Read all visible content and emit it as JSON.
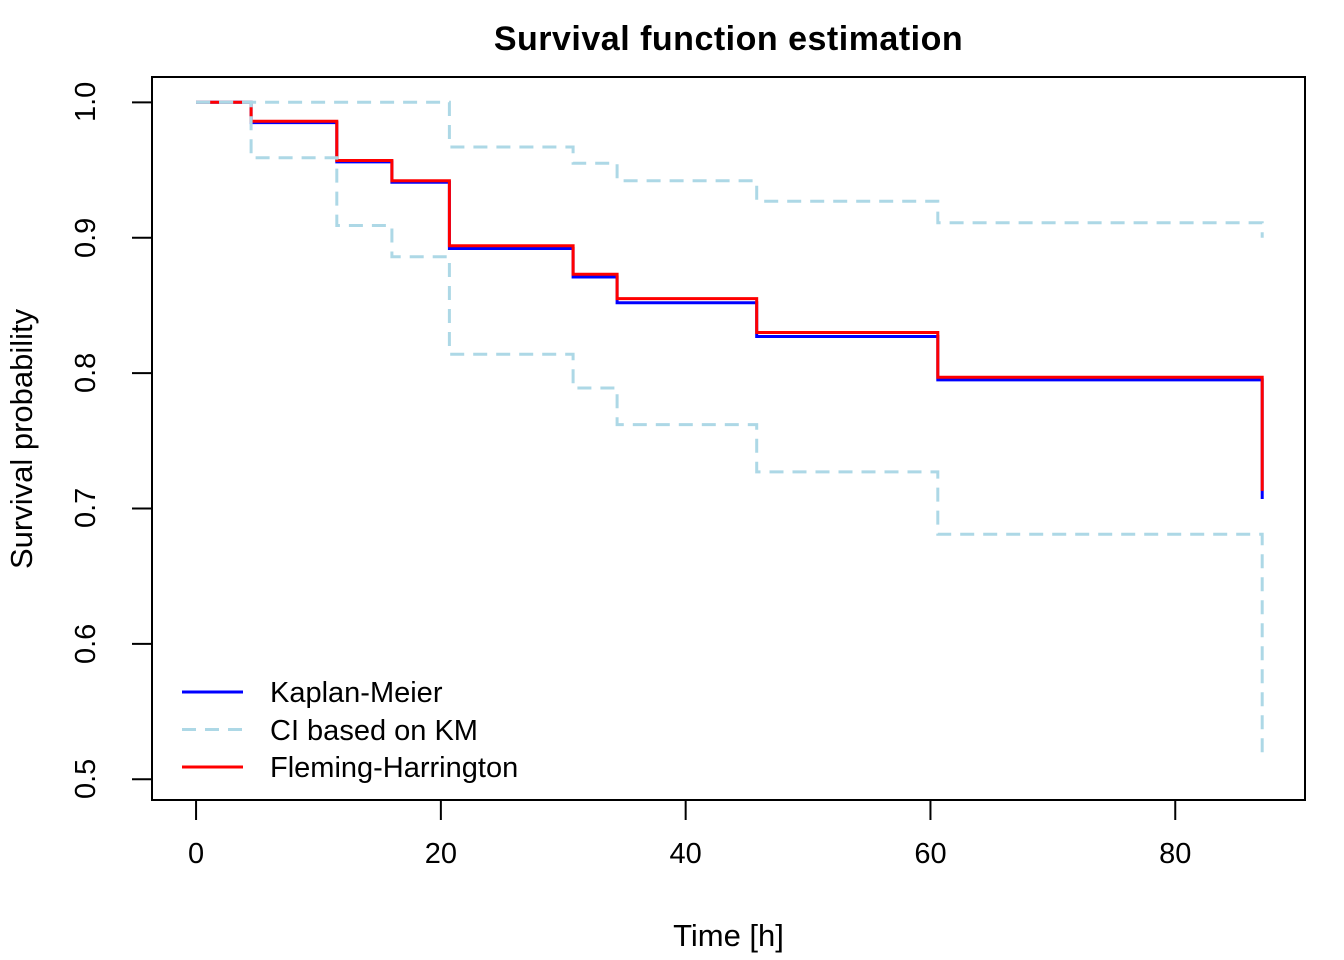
{
  "title": "Survival function estimation",
  "chart_data": {
    "type": "line",
    "subtype": "step-function-survival",
    "title": "Survival function estimation",
    "xlabel": "Time [h]",
    "ylabel": "Survival probability",
    "x_ticks": [
      0,
      20,
      40,
      60,
      80
    ],
    "x_tick_labels": [
      "0",
      "20",
      "40",
      "60",
      "80"
    ],
    "y_ticks": [
      0.5,
      0.6,
      0.7,
      0.8,
      0.9,
      1.0
    ],
    "y_tick_labels": [
      "0.5",
      "0.6",
      "0.7",
      "0.8",
      "0.9",
      "1.0"
    ],
    "xlim": [
      -3.6,
      90.6
    ],
    "ylim": [
      0.4847,
      1.0187
    ],
    "grid": false,
    "axis_color": "#000000",
    "background_color": "#ffffff",
    "legend_position": "bottom-left",
    "event_times": [
      4.5,
      11.5,
      16,
      20.7,
      30.8,
      34.4,
      45.8,
      60.6,
      87.1
    ],
    "series": [
      {
        "name": "Kaplan-Meier",
        "color": "#0000ff",
        "line_style": "solid",
        "points": [
          [
            0,
            1.0
          ],
          [
            4.5,
            0.985
          ],
          [
            11.5,
            0.956
          ],
          [
            16,
            0.941
          ],
          [
            20.7,
            0.892
          ],
          [
            30.8,
            0.871
          ],
          [
            34.4,
            0.852
          ],
          [
            45.8,
            0.827
          ],
          [
            60.6,
            0.795
          ],
          [
            87.1,
            0.707
          ]
        ]
      },
      {
        "name": "Fleming-Harrington",
        "color": "#ff0000",
        "line_style": "solid",
        "points": [
          [
            0,
            1.0
          ],
          [
            4.5,
            0.986
          ],
          [
            11.5,
            0.957
          ],
          [
            16,
            0.942
          ],
          [
            20.7,
            0.894
          ],
          [
            30.8,
            0.873
          ],
          [
            34.4,
            0.855
          ],
          [
            45.8,
            0.83
          ],
          [
            60.6,
            0.797
          ],
          [
            87.1,
            0.713
          ]
        ]
      },
      {
        "name": "CI lower based on KM",
        "color": "#add8e6",
        "line_style": "dashed",
        "points": [
          [
            0,
            1.0
          ],
          [
            4.5,
            0.959
          ],
          [
            11.5,
            0.909
          ],
          [
            16,
            0.886
          ],
          [
            20.7,
            0.814
          ],
          [
            30.8,
            0.789
          ],
          [
            34.4,
            0.762
          ],
          [
            45.8,
            0.727
          ],
          [
            60.6,
            0.681
          ],
          [
            87.1,
            0.515
          ]
        ]
      },
      {
        "name": "CI upper based on KM",
        "color": "#add8e6",
        "line_style": "dashed",
        "points": [
          [
            0,
            1.0
          ],
          [
            20.7,
            0.967
          ],
          [
            30.8,
            0.955
          ],
          [
            34.4,
            0.942
          ],
          [
            45.8,
            0.927
          ],
          [
            60.6,
            0.911
          ],
          [
            87.1,
            0.9
          ]
        ]
      }
    ]
  },
  "legend": {
    "items": [
      {
        "label": "Kaplan-Meier",
        "color": "#0000ff",
        "style": "solid"
      },
      {
        "label": "CI based on KM",
        "color": "#add8e6",
        "style": "dashed"
      },
      {
        "label": "Fleming-Harrington",
        "color": "#ff0000",
        "style": "solid"
      }
    ]
  }
}
